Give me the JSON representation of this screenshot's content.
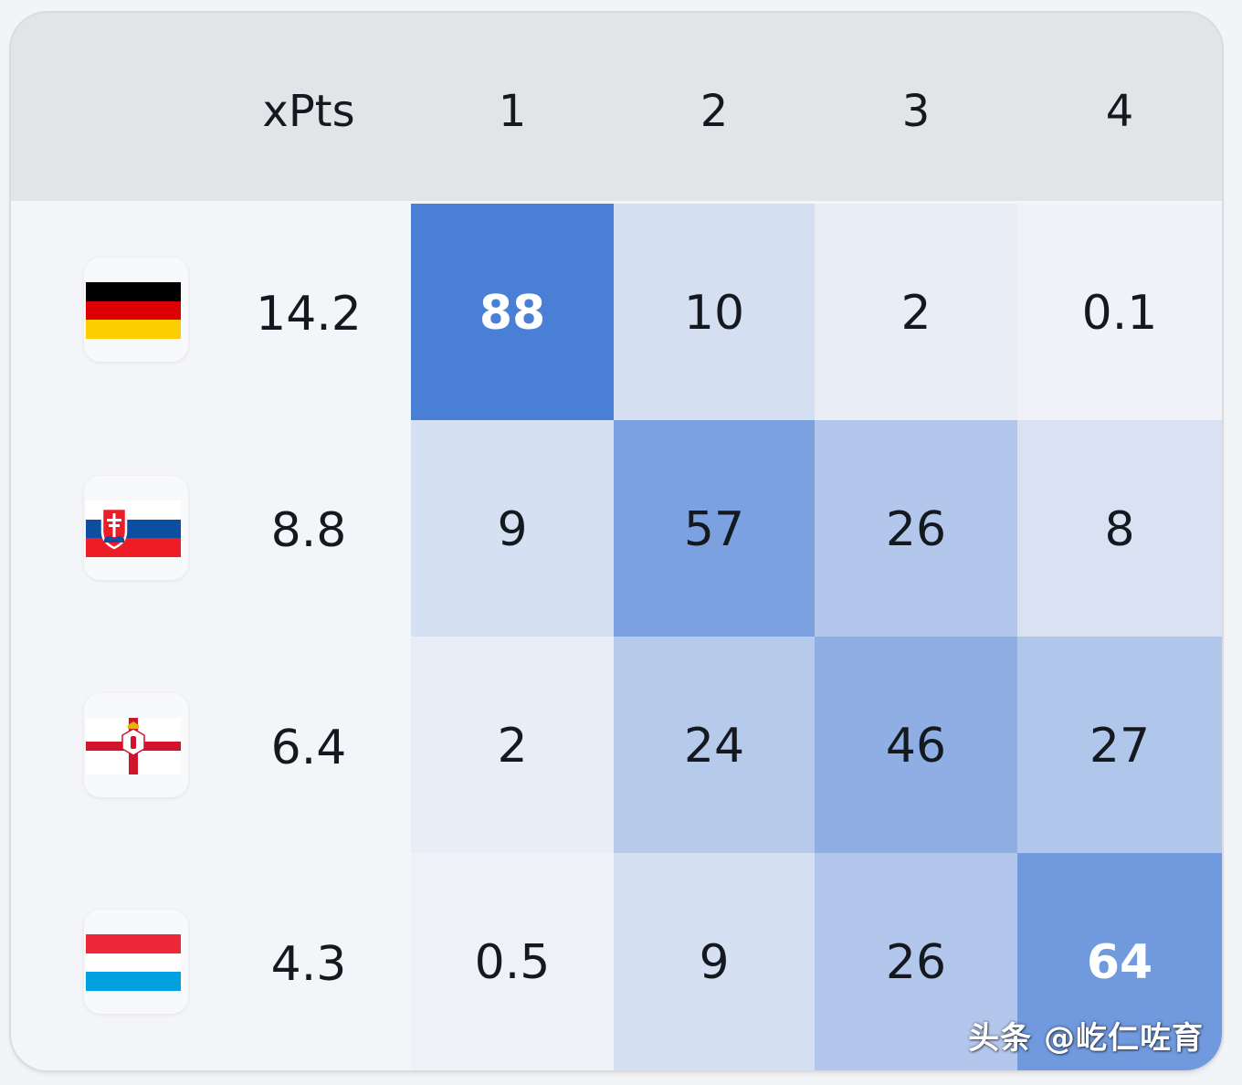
{
  "header": {
    "xpts_label": "xPts",
    "positions": [
      "1",
      "2",
      "3",
      "4"
    ]
  },
  "rows": [
    {
      "flag": "germany-flag-icon",
      "xpts": "14.2",
      "probs": [
        "88",
        "10",
        "2",
        "0.1"
      ]
    },
    {
      "flag": "slovakia-flag-icon",
      "xpts": "8.8",
      "probs": [
        "9",
        "57",
        "26",
        "8"
      ]
    },
    {
      "flag": "northern-ireland-flag-icon",
      "xpts": "6.4",
      "probs": [
        "2",
        "24",
        "46",
        "27"
      ]
    },
    {
      "flag": "luxembourg-flag-icon",
      "xpts": "4.3",
      "probs": [
        "0.5",
        "9",
        "26",
        "64"
      ]
    }
  ],
  "colors": {
    "heat_high": "#4a7fd6",
    "heat_low": "#f1f3f8",
    "header_bg": "#e3e4e8"
  },
  "chart_data": {
    "type": "heatmap",
    "columns": [
      "xPts",
      "1",
      "2",
      "3",
      "4"
    ],
    "row_labels": [
      "germany-flag-icon",
      "slovakia-flag-icon",
      "northern-ireland-flag-icon",
      "luxembourg-flag-icon"
    ],
    "xpts": [
      14.2,
      8.8,
      6.4,
      4.3
    ],
    "values": [
      [
        88,
        10,
        2,
        0.1
      ],
      [
        9,
        57,
        26,
        8
      ],
      [
        2,
        24,
        46,
        27
      ],
      [
        0.5,
        9,
        26,
        64
      ]
    ]
  },
  "watermark": "头条 @屹仁咗育"
}
